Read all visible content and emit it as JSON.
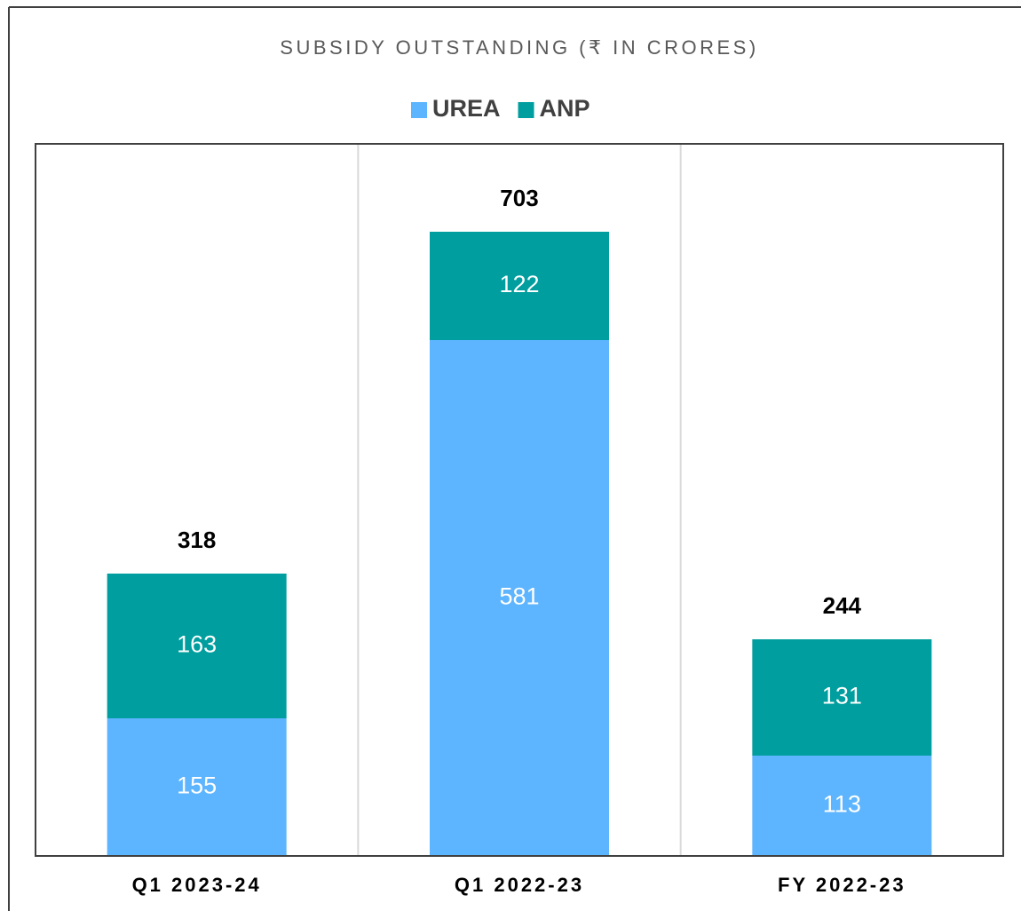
{
  "chart_data": {
    "type": "stacked_bar",
    "title": "SUBSIDY OUTSTANDING (₹ IN CRORES)",
    "categories": [
      "Q1 2023-24",
      "Q1 2022-23",
      "FY 2022-23"
    ],
    "series": [
      {
        "name": "UREA",
        "color": "#5db4ff",
        "values": [
          155,
          581,
          113
        ]
      },
      {
        "name": "ANP",
        "color": "#009e9e",
        "values": [
          163,
          122,
          131
        ]
      }
    ],
    "totals": [
      318,
      703,
      244
    ],
    "ylim": [
      0,
      802
    ]
  }
}
